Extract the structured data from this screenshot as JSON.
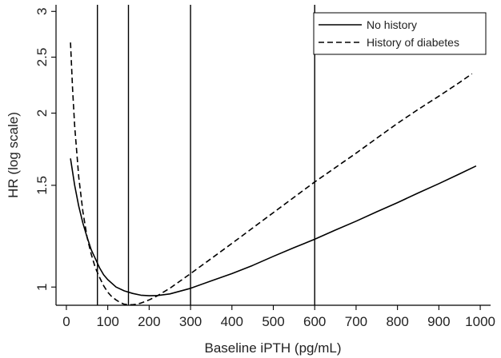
{
  "chart_data": {
    "type": "line",
    "xlabel": "Baseline iPTH (pg/mL)",
    "ylabel": "HR (log scale)",
    "y_scale": "log",
    "xlim": [
      -25,
      1025
    ],
    "ylim": [
      0.93,
      3.08
    ],
    "x_ticks": [
      0,
      100,
      200,
      300,
      400,
      500,
      600,
      700,
      800,
      900,
      1000
    ],
    "x_tick_labels": [
      "0",
      "100",
      "200",
      "300",
      "400",
      "500",
      "600",
      "700",
      "800",
      "900",
      "1000"
    ],
    "y_ticks": [
      1,
      1.5,
      2,
      2.5,
      3
    ],
    "y_tick_labels": [
      "1",
      "1.5",
      "2",
      "2.5",
      "3"
    ],
    "reference_lines_x": [
      75,
      150,
      300,
      600
    ],
    "legend_position": "top-right",
    "grid": false,
    "series": [
      {
        "name": "No history",
        "style": "solid",
        "color": "#000000",
        "x": [
          10,
          20,
          30,
          40,
          50,
          60,
          70,
          80,
          90,
          100,
          120,
          140,
          160,
          180,
          200,
          220,
          250,
          300,
          350,
          400,
          450,
          500,
          550,
          600,
          650,
          700,
          750,
          800,
          850,
          900,
          950,
          990
        ],
        "y": [
          1.67,
          1.5,
          1.38,
          1.29,
          1.22,
          1.16,
          1.12,
          1.08,
          1.05,
          1.03,
          1.0,
          0.985,
          0.975,
          0.968,
          0.966,
          0.967,
          0.973,
          0.995,
          1.025,
          1.055,
          1.09,
          1.13,
          1.17,
          1.21,
          1.255,
          1.3,
          1.35,
          1.4,
          1.455,
          1.51,
          1.57,
          1.62
        ]
      },
      {
        "name": "History of diabetes",
        "style": "dashed",
        "color": "#000000",
        "x": [
          10,
          15,
          20,
          30,
          40,
          50,
          60,
          70,
          80,
          90,
          100,
          110,
          120,
          130,
          140,
          150,
          160,
          170,
          180,
          200,
          220,
          250,
          300,
          350,
          400,
          450,
          500,
          550,
          600,
          650,
          700,
          750,
          800,
          850,
          900,
          950,
          980
        ],
        "y": [
          2.65,
          2.2,
          1.9,
          1.55,
          1.35,
          1.22,
          1.14,
          1.08,
          1.04,
          1.005,
          0.98,
          0.962,
          0.95,
          0.94,
          0.934,
          0.932,
          0.932,
          0.934,
          0.938,
          0.95,
          0.966,
          0.995,
          1.055,
          1.12,
          1.19,
          1.265,
          1.345,
          1.43,
          1.52,
          1.61,
          1.705,
          1.81,
          1.92,
          2.03,
          2.14,
          2.26,
          2.34
        ]
      }
    ]
  }
}
